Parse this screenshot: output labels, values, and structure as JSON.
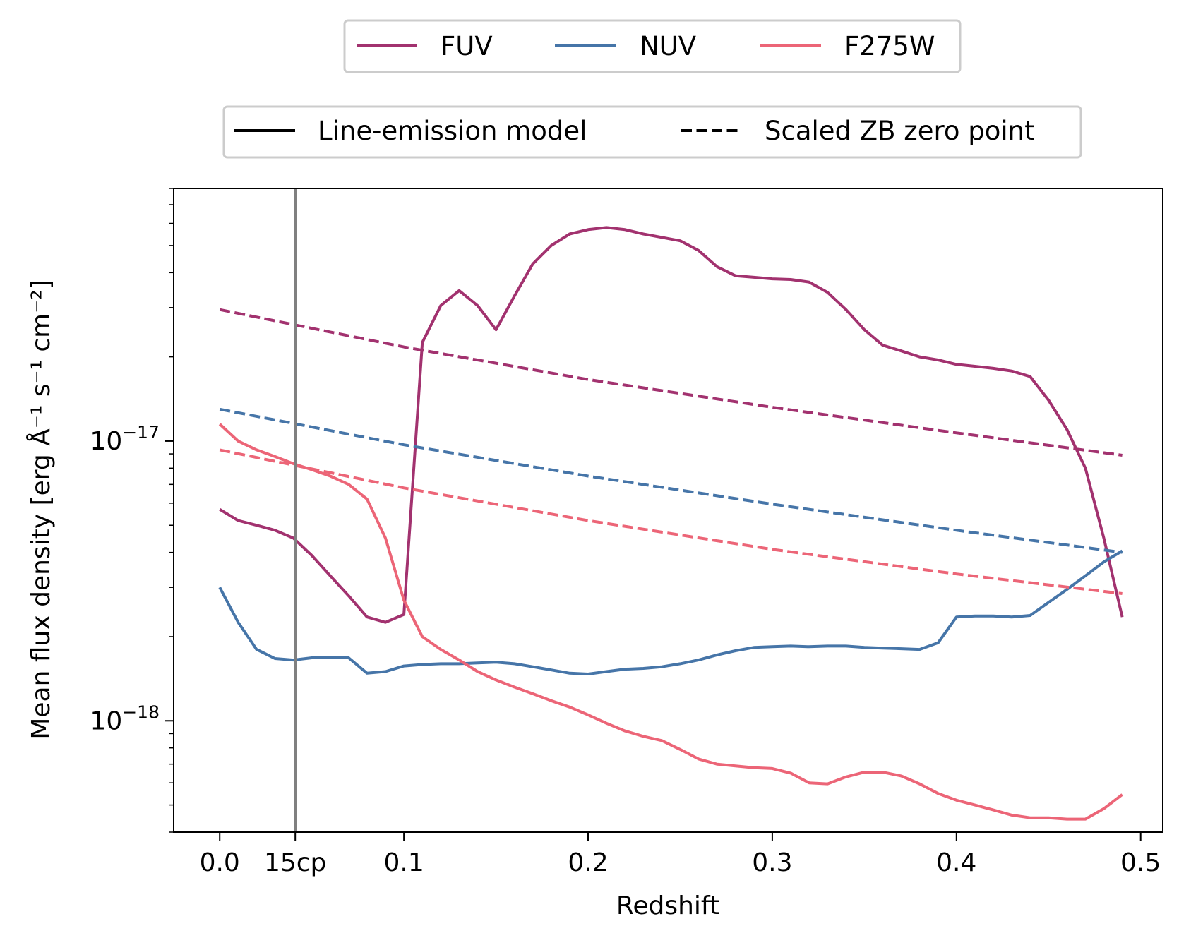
{
  "chart_data": {
    "type": "line",
    "xlabel": "Redshift",
    "ylabel": "Mean flux density [erg Å⁻¹ s⁻¹ cm⁻²]",
    "xlim": [
      -0.025,
      0.512
    ],
    "ylim": [
      4e-19,
      8e-17
    ],
    "yscale": "log",
    "grid": false,
    "x_ticks": [
      {
        "value": 0.0,
        "label": "0.0"
      },
      {
        "value": 0.1,
        "label": "0.1"
      },
      {
        "value": 0.2,
        "label": "0.2"
      },
      {
        "value": 0.3,
        "label": "0.3"
      },
      {
        "value": 0.4,
        "label": "0.4"
      },
      {
        "value": 0.5,
        "label": "0.5"
      }
    ],
    "y_ticks": [
      {
        "value": 1e-18,
        "base": "10",
        "exp": "−18"
      },
      {
        "value": 1e-17,
        "base": "10",
        "exp": "−17"
      }
    ],
    "vline": {
      "x": 0.041,
      "label": "15cp",
      "color": "#808080"
    },
    "legend_bands": {
      "placement": "top-center",
      "items": [
        {
          "label": "FUV",
          "color": "#a2326f"
        },
        {
          "label": "NUV",
          "color": "#4675a8"
        },
        {
          "label": "F275W",
          "color": "#ec6577"
        }
      ]
    },
    "legend_styles": {
      "placement": "top-center",
      "items": [
        {
          "label": "Line-emission model",
          "dash": "solid"
        },
        {
          "label": "Scaled ZB zero point",
          "dash": "dashed"
        }
      ]
    },
    "series": [
      {
        "name": "FUV",
        "style": "solid",
        "color": "#a2326f",
        "x": [
          0.0,
          0.01,
          0.02,
          0.03,
          0.04,
          0.05,
          0.06,
          0.07,
          0.08,
          0.09,
          0.1,
          0.11,
          0.12,
          0.13,
          0.14,
          0.15,
          0.16,
          0.17,
          0.18,
          0.19,
          0.2,
          0.21,
          0.22,
          0.23,
          0.24,
          0.25,
          0.26,
          0.27,
          0.28,
          0.29,
          0.3,
          0.31,
          0.32,
          0.33,
          0.34,
          0.35,
          0.36,
          0.37,
          0.38,
          0.39,
          0.4,
          0.41,
          0.42,
          0.43,
          0.44,
          0.45,
          0.46,
          0.47,
          0.48,
          0.49
        ],
        "y": [
          5.7e-18,
          5.2e-18,
          5e-18,
          4.8e-18,
          4.5e-18,
          3.9e-18,
          3.3e-18,
          2.8e-18,
          2.35e-18,
          2.25e-18,
          2.4e-18,
          2.25e-17,
          3.05e-17,
          3.45e-17,
          3.05e-17,
          2.5e-17,
          3.3e-17,
          4.3e-17,
          5e-17,
          5.5e-17,
          5.7e-17,
          5.8e-17,
          5.7e-17,
          5.5e-17,
          5.35e-17,
          5.2e-17,
          4.8e-17,
          4.2e-17,
          3.9e-17,
          3.85e-17,
          3.8e-17,
          3.78e-17,
          3.7e-17,
          3.4e-17,
          2.95e-17,
          2.5e-17,
          2.2e-17,
          2.1e-17,
          2e-17,
          1.95e-17,
          1.88e-17,
          1.85e-17,
          1.82e-17,
          1.78e-17,
          1.7e-17,
          1.4e-17,
          1.1e-17,
          8e-18,
          4.5e-18,
          2.35e-18
        ]
      },
      {
        "name": "NUV",
        "style": "solid",
        "color": "#4675a8",
        "x": [
          0.0,
          0.01,
          0.02,
          0.03,
          0.04,
          0.05,
          0.06,
          0.07,
          0.08,
          0.09,
          0.1,
          0.11,
          0.12,
          0.13,
          0.14,
          0.15,
          0.16,
          0.17,
          0.18,
          0.19,
          0.2,
          0.21,
          0.22,
          0.23,
          0.24,
          0.25,
          0.26,
          0.27,
          0.28,
          0.29,
          0.3,
          0.31,
          0.32,
          0.33,
          0.34,
          0.35,
          0.36,
          0.37,
          0.38,
          0.39,
          0.4,
          0.41,
          0.42,
          0.43,
          0.44,
          0.45,
          0.46,
          0.47,
          0.48,
          0.49
        ],
        "y": [
          3e-18,
          2.25e-18,
          1.8e-18,
          1.67e-18,
          1.65e-18,
          1.68e-18,
          1.68e-18,
          1.68e-18,
          1.48e-18,
          1.5e-18,
          1.57e-18,
          1.59e-18,
          1.6e-18,
          1.6e-18,
          1.61e-18,
          1.62e-18,
          1.6e-18,
          1.56e-18,
          1.52e-18,
          1.48e-18,
          1.47e-18,
          1.5e-18,
          1.53e-18,
          1.54e-18,
          1.56e-18,
          1.6e-18,
          1.65e-18,
          1.72e-18,
          1.78e-18,
          1.83e-18,
          1.84e-18,
          1.85e-18,
          1.84e-18,
          1.85e-18,
          1.85e-18,
          1.83e-18,
          1.82e-18,
          1.81e-18,
          1.8e-18,
          1.9e-18,
          2.35e-18,
          2.37e-18,
          2.37e-18,
          2.35e-18,
          2.38e-18,
          2.65e-18,
          2.95e-18,
          3.3e-18,
          3.7e-18,
          4.05e-18
        ]
      },
      {
        "name": "F275W",
        "style": "solid",
        "color": "#ec6577",
        "x": [
          0.0,
          0.01,
          0.02,
          0.03,
          0.04,
          0.05,
          0.06,
          0.07,
          0.08,
          0.09,
          0.1,
          0.11,
          0.12,
          0.13,
          0.14,
          0.15,
          0.16,
          0.17,
          0.18,
          0.19,
          0.2,
          0.21,
          0.22,
          0.23,
          0.24,
          0.25,
          0.26,
          0.27,
          0.28,
          0.29,
          0.3,
          0.31,
          0.32,
          0.33,
          0.34,
          0.35,
          0.36,
          0.37,
          0.38,
          0.39,
          0.4,
          0.41,
          0.42,
          0.43,
          0.44,
          0.45,
          0.46,
          0.47,
          0.48,
          0.49
        ],
        "y": [
          1.15e-17,
          1e-17,
          9.3e-18,
          8.8e-18,
          8.3e-18,
          7.9e-18,
          7.5e-18,
          7e-18,
          6.2e-18,
          4.5e-18,
          2.7e-18,
          2e-18,
          1.8e-18,
          1.65e-18,
          1.5e-18,
          1.4e-18,
          1.32e-18,
          1.25e-18,
          1.18e-18,
          1.12e-18,
          1.05e-18,
          9.8e-19,
          9.2e-19,
          8.8e-19,
          8.5e-19,
          7.9e-19,
          7.3e-19,
          7e-19,
          6.9e-19,
          6.8e-19,
          6.75e-19,
          6.5e-19,
          6e-19,
          5.95e-19,
          6.3e-19,
          6.55e-19,
          6.55e-19,
          6.35e-19,
          5.95e-19,
          5.5e-19,
          5.2e-19,
          5e-19,
          4.8e-19,
          4.6e-19,
          4.5e-19,
          4.5e-19,
          4.45e-19,
          4.45e-19,
          4.85e-19,
          5.45e-19
        ]
      },
      {
        "name": "FUV",
        "style": "dashed",
        "color": "#a2326f",
        "x": [
          0.0,
          0.1,
          0.2,
          0.3,
          0.4,
          0.49
        ],
        "y": [
          2.95e-17,
          2.17e-17,
          1.66e-17,
          1.32e-17,
          1.07e-17,
          8.9e-18
        ]
      },
      {
        "name": "NUV",
        "style": "dashed",
        "color": "#4675a8",
        "x": [
          0.0,
          0.1,
          0.2,
          0.3,
          0.4,
          0.49
        ],
        "y": [
          1.3e-17,
          9.7e-18,
          7.5e-18,
          5.95e-18,
          4.8e-18,
          4e-18
        ]
      },
      {
        "name": "F275W",
        "style": "dashed",
        "color": "#ec6577",
        "x": [
          0.0,
          0.1,
          0.2,
          0.3,
          0.4,
          0.49
        ],
        "y": [
          9.3e-18,
          6.8e-18,
          5.2e-18,
          4.1e-18,
          3.35e-18,
          2.85e-18
        ]
      }
    ]
  }
}
